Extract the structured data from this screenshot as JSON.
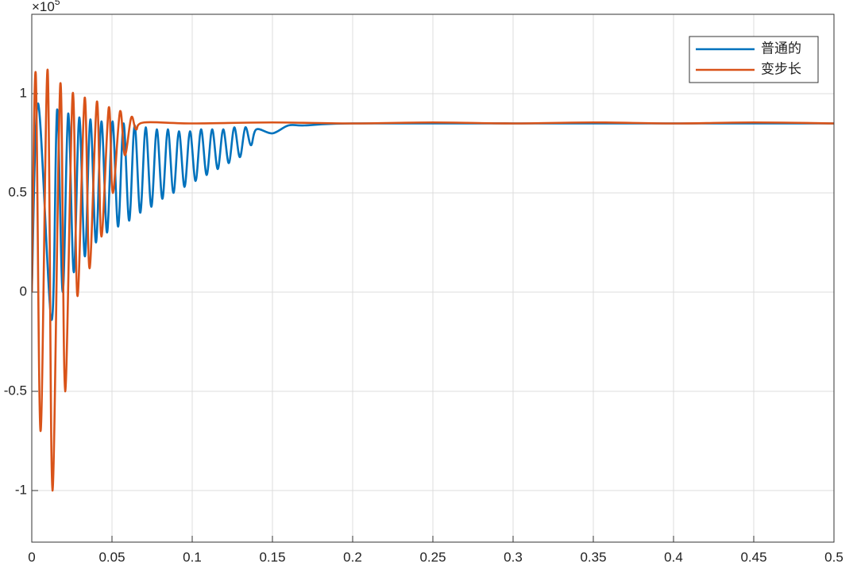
{
  "chart_data": {
    "type": "line",
    "y_exponent": {
      "base": "×10",
      "power": "5"
    },
    "xlim": [
      0,
      0.5
    ],
    "xticks": [
      0,
      0.05,
      0.1,
      0.15,
      0.2,
      0.25,
      0.3,
      0.35,
      0.4,
      0.45,
      0.5
    ],
    "ylim": [
      -1.26,
      1.4
    ],
    "yticks": [
      -1,
      -0.5,
      0,
      0.5,
      1
    ],
    "grid": true,
    "legend": "top-right",
    "series": [
      {
        "name": "普通的",
        "color": "#0072bd",
        "x": [
          0,
          0.004,
          0.0124,
          0.0158,
          0.0193,
          0.0227,
          0.0262,
          0.0296,
          0.0331,
          0.0365,
          0.04,
          0.0434,
          0.0469,
          0.0503,
          0.0538,
          0.0572,
          0.0607,
          0.0641,
          0.0676,
          0.071,
          0.0745,
          0.0779,
          0.0814,
          0.0848,
          0.0883,
          0.0917,
          0.0952,
          0.0986,
          0.1021,
          0.1055,
          0.109,
          0.1124,
          0.1159,
          0.1193,
          0.1228,
          0.1262,
          0.1297,
          0.1331,
          0.1366,
          0.14,
          0.15,
          0.16,
          0.17,
          0.2,
          0.3,
          0.4,
          0.5
        ],
        "values": [
          0,
          0.95,
          -0.14,
          0.92,
          0.0,
          0.9,
          0.1,
          0.88,
          0.18,
          0.87,
          0.25,
          0.86,
          0.3,
          0.86,
          0.33,
          0.85,
          0.36,
          0.84,
          0.4,
          0.83,
          0.43,
          0.82,
          0.47,
          0.82,
          0.5,
          0.81,
          0.53,
          0.81,
          0.56,
          0.82,
          0.59,
          0.82,
          0.62,
          0.82,
          0.65,
          0.83,
          0.68,
          0.83,
          0.74,
          0.82,
          0.8,
          0.84,
          0.84,
          0.85,
          0.85,
          0.85,
          0.85
        ]
      },
      {
        "name": "变步长",
        "color": "#d95319",
        "x": [
          0,
          0.0025,
          0.0055,
          0.0099,
          0.0129,
          0.0178,
          0.0208,
          0.0255,
          0.0285,
          0.033,
          0.036,
          0.0406,
          0.0434,
          0.048,
          0.0505,
          0.055,
          0.058,
          0.062,
          0.065,
          0.07,
          0.1,
          0.15,
          0.2,
          0.25,
          0.3,
          0.35,
          0.4,
          0.45,
          0.5
        ],
        "values": [
          0,
          1.1,
          -0.7,
          1.12,
          -1.0,
          1.05,
          -0.5,
          1.0,
          -0.02,
          0.98,
          0.12,
          0.96,
          0.28,
          0.93,
          0.5,
          0.91,
          0.69,
          0.88,
          0.82,
          0.855,
          0.85,
          0.855,
          0.85,
          0.855,
          0.85,
          0.855,
          0.85,
          0.855,
          0.85
        ]
      }
    ]
  }
}
